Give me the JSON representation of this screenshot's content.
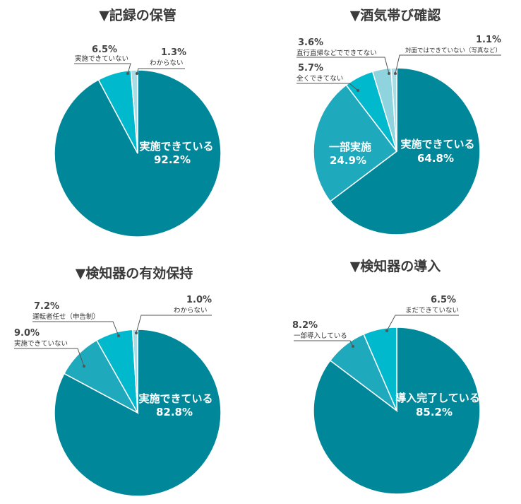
{
  "colors": {
    "main": "#00889a",
    "second": "#1fa9bd",
    "third": "#00b9cc",
    "fourth": "#8fd3de",
    "tiny": "#a8dde6",
    "title": "#3a3a3a",
    "leader": "#555555"
  },
  "chart_data": [
    {
      "type": "pie",
      "title": "▼記録の保管",
      "slices": [
        {
          "label": "実施できている",
          "value": 92.2,
          "display": "92.2%"
        },
        {
          "label": "実施できていない",
          "value": 6.5,
          "display": "6.5%"
        },
        {
          "label": "わからない",
          "value": 1.3,
          "display": "1.3%"
        }
      ]
    },
    {
      "type": "pie",
      "title": "▼酒気帯び確認",
      "slices": [
        {
          "label": "実施できている",
          "value": 64.8,
          "display": "64.8%"
        },
        {
          "label": "一部実施",
          "value": 24.9,
          "display": "24.9%"
        },
        {
          "label": "全くできてない",
          "value": 5.7,
          "display": "5.7%"
        },
        {
          "label": "直行直帰などでできてない",
          "value": 3.6,
          "display": "3.6%"
        },
        {
          "label": "対面ではできていない（写真など）",
          "value": 1.1,
          "display": "1.1%"
        }
      ]
    },
    {
      "type": "pie",
      "title": "▼検知器の有効保持",
      "slices": [
        {
          "label": "実施できている",
          "value": 82.8,
          "display": "82.8%"
        },
        {
          "label": "実施できていない",
          "value": 9.0,
          "display": "9.0%"
        },
        {
          "label": "運転者任せ（申告制）",
          "value": 7.2,
          "display": "7.2%"
        },
        {
          "label": "わからない",
          "value": 1.0,
          "display": "1.0%"
        }
      ]
    },
    {
      "type": "pie",
      "title": "▼検知器の導入",
      "slices": [
        {
          "label": "導入完了している",
          "value": 85.2,
          "display": "85.2%"
        },
        {
          "label": "一部導入している",
          "value": 8.2,
          "display": "8.2%"
        },
        {
          "label": "まだできていない",
          "value": 6.5,
          "display": "6.5%"
        }
      ]
    }
  ]
}
